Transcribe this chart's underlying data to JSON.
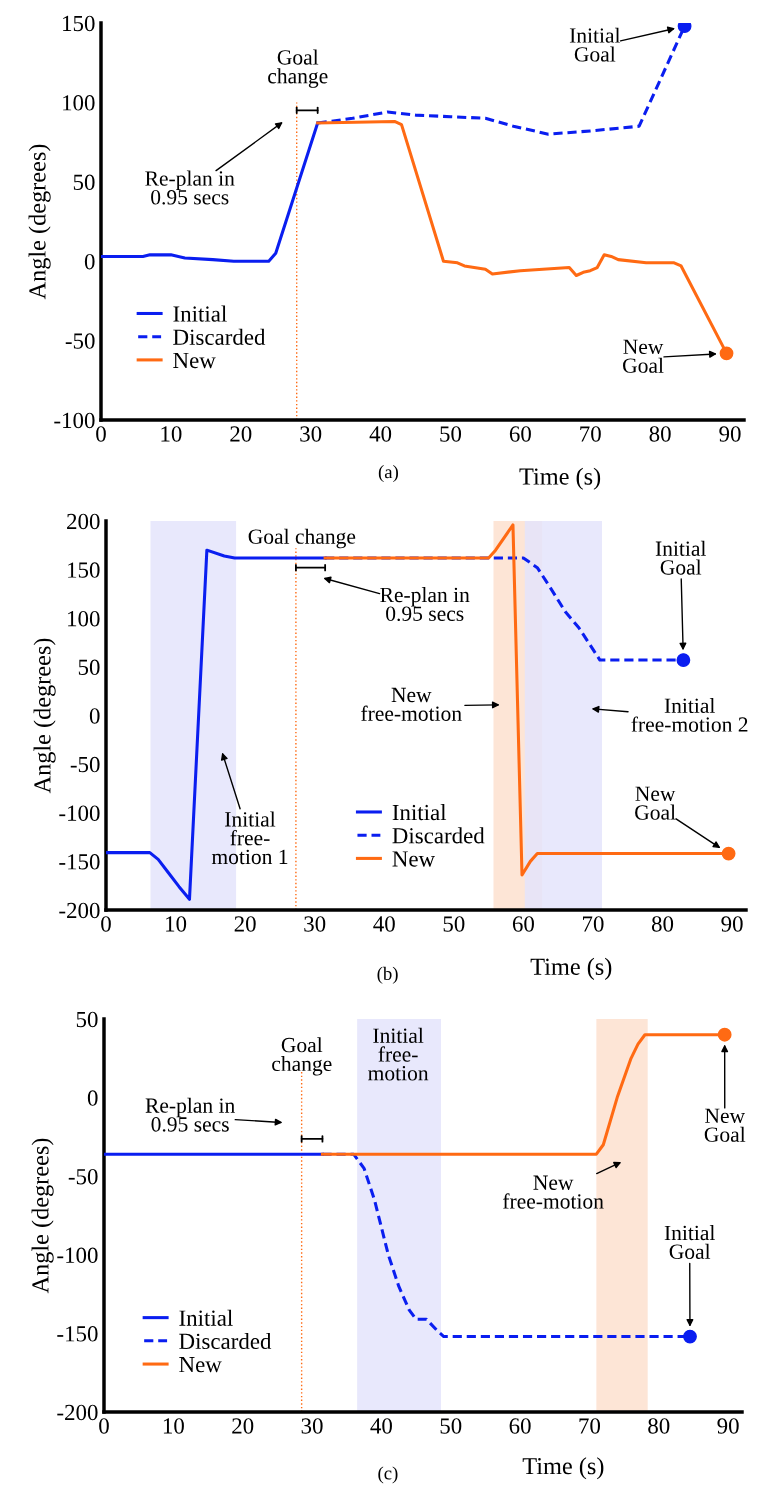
{
  "chart_data": [
    {
      "type": "line",
      "xlabel": "Time (s)",
      "ylabel": "Angle (degrees)",
      "xlim": [
        0,
        92
      ],
      "ylim": [
        -100,
        150
      ],
      "xticks": [
        0,
        10,
        20,
        30,
        40,
        50,
        60,
        70,
        80,
        90
      ],
      "yticks": [
        -100,
        -50,
        0,
        50,
        100,
        150
      ],
      "grid": false,
      "legend": "bottom left",
      "series": [
        {
          "name": "Initial",
          "color": "#0a1ef0",
          "line_style": "solid",
          "x": [
            0,
            6,
            7,
            10,
            12,
            16,
            19,
            24,
            25,
            31
          ],
          "values": [
            3,
            3,
            4,
            4,
            2,
            1,
            0,
            0,
            5,
            87
          ]
        },
        {
          "name": "Discarded",
          "color": "#0a1ef0",
          "line_style": "dashed",
          "x": [
            31,
            36,
            41,
            45,
            50,
            55,
            59,
            64,
            70,
            77,
            83.5
          ],
          "values": [
            87,
            90,
            94,
            92,
            91,
            90,
            85,
            80,
            82,
            85,
            148
          ]
        },
        {
          "name": "New",
          "color": "#ff6a13",
          "line_style": "solid",
          "x": [
            31,
            42,
            43,
            49,
            51,
            52,
            55,
            56,
            60,
            67,
            68,
            69,
            70,
            71,
            72,
            73,
            74,
            78,
            82,
            83,
            89.5
          ],
          "values": [
            87,
            88,
            86,
            0,
            -1,
            -3,
            -5,
            -8,
            -6,
            -4,
            -9,
            -7,
            -6,
            -4,
            4,
            3,
            1,
            -1,
            -1,
            -3,
            -58
          ]
        },
        {
          "type": "scatter",
          "marker": "circle",
          "color": "#0a1ef0",
          "x": [
            83.5
          ],
          "values": [
            148
          ]
        },
        {
          "type": "scatter",
          "marker": "circle",
          "color": "#ff6a13",
          "x": [
            89.5
          ],
          "values": [
            -58
          ]
        }
      ],
      "ref_lines": [
        {
          "axis": "x",
          "value": 28,
          "label": "Goal\nchange",
          "color": "#ff6a13",
          "line_style": "dotted"
        }
      ],
      "annotations": [
        "Re-plan in\n0.95 secs",
        "Initial\nGoal",
        "New\nGoal",
        "(a)"
      ]
    },
    {
      "type": "line",
      "xlabel": "Time (s)",
      "ylabel": "Angle (degrees)",
      "xlim": [
        0,
        92
      ],
      "ylim": [
        -200,
        200
      ],
      "xticks": [
        0,
        10,
        20,
        30,
        40,
        50,
        60,
        70,
        80,
        90
      ],
      "yticks": [
        -200,
        -150,
        -100,
        -50,
        0,
        50,
        100,
        150,
        200
      ],
      "grid": false,
      "legend": "bottom",
      "series": [
        {
          "name": "Initial",
          "color": "#0a1ef0",
          "line_style": "solid",
          "x": [
            0,
            6.3,
            7.5,
            9,
            10.5,
            12,
            14.5,
            17,
            18.5,
            31.5
          ],
          "values": [
            -141,
            -141,
            -148,
            -162,
            -176,
            -189,
            170,
            164,
            162,
            162
          ]
        },
        {
          "name": "Discarded",
          "color": "#0a1ef0",
          "line_style": "dashed",
          "x": [
            31.5,
            55.5,
            60,
            62,
            64,
            66,
            68,
            71,
            83
          ],
          "values": [
            162,
            162,
            162,
            152,
            130,
            107,
            90,
            57,
            57
          ]
        },
        {
          "name": "New",
          "color": "#ff6a13",
          "line_style": "solid",
          "x": [
            31.5,
            55,
            56,
            58.5,
            59.8,
            61,
            62,
            89.5
          ],
          "values": [
            162,
            162,
            170,
            196,
            -164,
            -150,
            -142,
            -142
          ]
        },
        {
          "type": "scatter",
          "marker": "circle",
          "color": "#0a1ef0",
          "x": [
            83
          ],
          "values": [
            57
          ]
        },
        {
          "type": "scatter",
          "marker": "circle",
          "color": "#ff6a13",
          "x": [
            89.5
          ],
          "values": [
            -142
          ]
        }
      ],
      "ref_lines": [
        {
          "axis": "x",
          "value": 27.3,
          "label": "Goal change",
          "color": "#ff6a13",
          "line_style": "dotted"
        }
      ],
      "bands": [
        {
          "axis": "x",
          "from": 6.4,
          "to": 18.7,
          "label": "Initial\nfree-\nmotion 1",
          "color": "#e4e4fb"
        },
        {
          "axis": "x",
          "from": 55.7,
          "to": 62.7,
          "label": "New\nfree-motion",
          "color": "#fde0cf"
        },
        {
          "axis": "x",
          "from": 60.2,
          "to": 71.3,
          "label": "Initial\nfree-motion 2",
          "color": "#e4e4fb"
        }
      ],
      "annotations": [
        "Re-plan in\n0.95 secs",
        "Initial\nGoal",
        "New\nGoal",
        "(b)"
      ]
    },
    {
      "type": "line",
      "xlabel": "Time (s)",
      "ylabel": "Angle (degrees)",
      "xlim": [
        0,
        92
      ],
      "ylim": [
        -200,
        50
      ],
      "xticks": [
        0,
        10,
        20,
        30,
        40,
        50,
        60,
        70,
        80,
        90
      ],
      "yticks": [
        -200,
        -150,
        -100,
        -50,
        0,
        50
      ],
      "grid": false,
      "legend": "bottom left",
      "series": [
        {
          "name": "Initial",
          "color": "#0a1ef0",
          "line_style": "solid",
          "x": [
            0,
            31.5
          ],
          "values": [
            -36,
            -36
          ]
        },
        {
          "name": "Discarded",
          "color": "#0a1ef0",
          "line_style": "dashed",
          "x": [
            31.5,
            36,
            37.5,
            39,
            41,
            42.5,
            44,
            45,
            46.5,
            48,
            49,
            84.5
          ],
          "values": [
            -36,
            -36,
            -45,
            -65,
            -100,
            -120,
            -135,
            -141,
            -141,
            -148,
            -152,
            -152
          ]
        },
        {
          "name": "New",
          "color": "#ff6a13",
          "line_style": "solid",
          "x": [
            31.5,
            71,
            72,
            74,
            76,
            77,
            78,
            89.5
          ],
          "values": [
            -36,
            -36,
            -30,
            0,
            25,
            34,
            40,
            40
          ]
        },
        {
          "type": "scatter",
          "marker": "circle",
          "color": "#0a1ef0",
          "x": [
            84.5
          ],
          "values": [
            -152
          ]
        },
        {
          "type": "scatter",
          "marker": "circle",
          "color": "#ff6a13",
          "x": [
            89.5
          ],
          "values": [
            40
          ]
        }
      ],
      "ref_lines": [
        {
          "axis": "x",
          "value": 28.5,
          "label": "Goal\nchange",
          "color": "#ff6a13",
          "line_style": "dotted"
        }
      ],
      "bands": [
        {
          "axis": "x",
          "from": 36.5,
          "to": 48.6,
          "label": "Initial\nfree-\nmotion",
          "color": "#e4e4fb"
        },
        {
          "axis": "x",
          "from": 71,
          "to": 78.4,
          "label": "New\nfree-motion",
          "color": "#fde0cf"
        }
      ],
      "annotations": [
        "Re-plan in\n0.95 secs",
        "New\nGoal",
        "Initial\nGoal",
        "(c)"
      ]
    }
  ]
}
